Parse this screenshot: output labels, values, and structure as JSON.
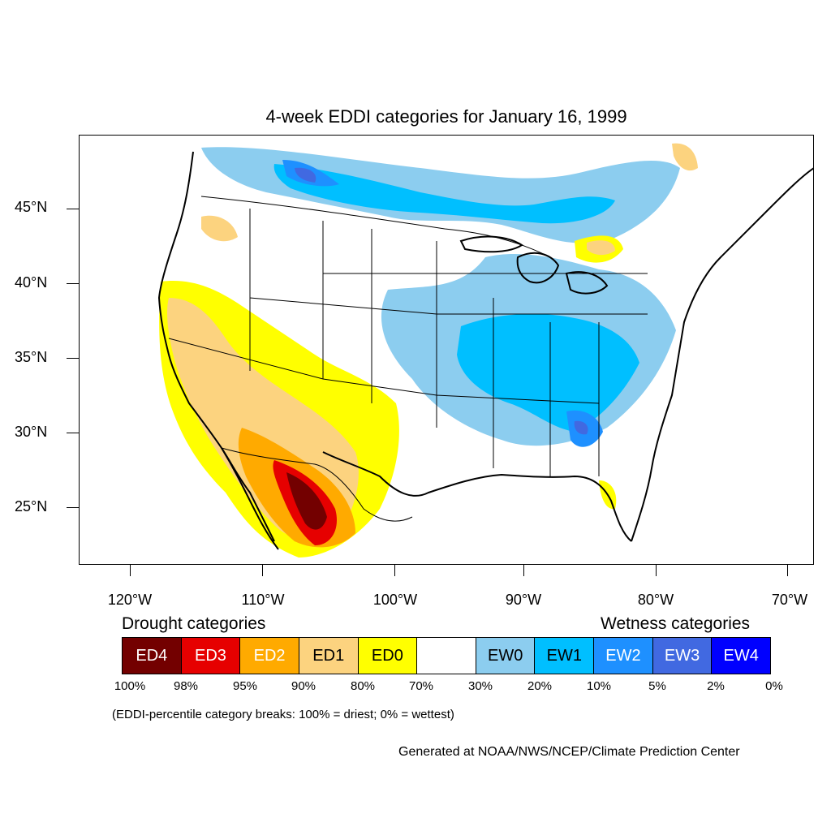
{
  "title": "4-week EDDI categories for January 16, 1999",
  "lat_labels": [
    "45°N",
    "40°N",
    "35°N",
    "30°N",
    "25°N"
  ],
  "lon_labels": [
    "120°W",
    "110°W",
    "100°W",
    "90°W",
    "80°W",
    "70°W"
  ],
  "legend": {
    "drought_heading": "Drought categories",
    "wetness_heading": "Wetness categories",
    "categories": [
      {
        "label": "ED4",
        "color": "#730000",
        "text_color": "#ffffff"
      },
      {
        "label": "ED3",
        "color": "#e60000",
        "text_color": "#ffffff"
      },
      {
        "label": "ED2",
        "color": "#ffaa00",
        "text_color": "#ffffff"
      },
      {
        "label": "ED1",
        "color": "#fcd37f",
        "text_color": "#000000"
      },
      {
        "label": "ED0",
        "color": "#ffff00",
        "text_color": "#000000"
      },
      {
        "label": "",
        "color": "#ffffff",
        "text_color": "#000000"
      },
      {
        "label": "EW0",
        "color": "#8ccdef",
        "text_color": "#000000"
      },
      {
        "label": "EW1",
        "color": "#00bfff",
        "text_color": "#000000"
      },
      {
        "label": "EW2",
        "color": "#1e90ff",
        "text_color": "#ffffff"
      },
      {
        "label": "EW3",
        "color": "#4169e1",
        "text_color": "#ffffff"
      },
      {
        "label": "EW4",
        "color": "#0000ff",
        "text_color": "#ffffff"
      }
    ],
    "breaks": [
      "100%",
      "98%",
      "95%",
      "90%",
      "80%",
      "70%",
      "30%",
      "20%",
      "10%",
      "5%",
      "2%",
      "0%"
    ]
  },
  "note": "(EDDI-percentile category breaks: 100% = driest; 0% = wettest)",
  "credit": "Generated at NOAA/NWS/NCEP/Climate Prediction Center"
}
